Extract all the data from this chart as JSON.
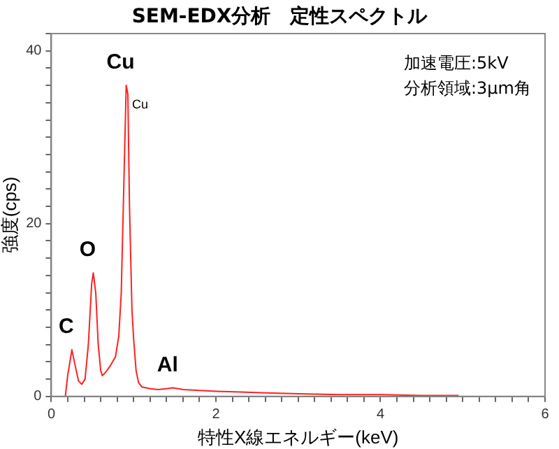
{
  "chart_data": {
    "type": "line",
    "title": "SEM-EDX分析　定性スペクトル",
    "xlabel": "特性X線エネルギー(keV)",
    "ylabel": "強度(cps)",
    "series": [
      {
        "color": "#ff2020",
        "x": [
          0.17,
          0.2,
          0.25,
          0.28,
          0.33,
          0.37,
          0.41,
          0.45,
          0.49,
          0.51,
          0.54,
          0.57,
          0.6,
          0.62,
          0.66,
          0.72,
          0.78,
          0.82,
          0.85,
          0.88,
          0.91,
          0.93,
          0.95,
          0.98,
          1.0,
          1.03,
          1.06,
          1.1,
          1.2,
          1.3,
          1.4,
          1.48,
          1.6,
          1.8,
          2.0,
          2.3,
          2.6,
          3.0,
          3.5,
          4.0,
          4.5,
          4.95
        ],
        "values": [
          0,
          2.5,
          5.4,
          4,
          1.8,
          1.4,
          2,
          6,
          13,
          14.3,
          12,
          6,
          3,
          2.4,
          2.8,
          3.6,
          4.6,
          7,
          12,
          24,
          36,
          35,
          22,
          10,
          6.7,
          3,
          1.6,
          1.1,
          0.9,
          0.8,
          0.9,
          1,
          0.8,
          0.7,
          0.6,
          0.5,
          0.4,
          0.3,
          0.2,
          0.2,
          0.1,
          0.1
        ]
      }
    ],
    "xlim": [
      0,
      6
    ],
    "ylim": [
      0,
      42
    ],
    "xticks": [
      0,
      {
        "value": 0.2,
        "label": null
      },
      {
        "value": 0.4,
        "label": null
      },
      {
        "value": 0.6,
        "label": null
      },
      {
        "value": 0.8,
        "label": null
      },
      {
        "value": 1,
        "label": null
      },
      {
        "value": 1.2,
        "label": null
      },
      {
        "value": 1.4,
        "label": null
      },
      {
        "value": 1.6,
        "label": null
      },
      {
        "value": 1.8,
        "label": null
      },
      2,
      {
        "value": 2.2,
        "label": null
      },
      {
        "value": 2.4,
        "label": null
      },
      {
        "value": 2.6,
        "label": null
      },
      {
        "value": 2.8,
        "label": null
      },
      {
        "value": 3,
        "label": null
      },
      {
        "value": 3.2,
        "label": null
      },
      {
        "value": 3.4,
        "label": null
      },
      {
        "value": 3.6,
        "label": null
      },
      {
        "value": 3.8,
        "label": null
      },
      4,
      {
        "value": 4.2,
        "label": null
      },
      {
        "value": 4.4,
        "label": null
      },
      {
        "value": 4.6,
        "label": null
      },
      {
        "value": 4.8,
        "label": null
      },
      {
        "value": 5,
        "label": null
      },
      {
        "value": 5.2,
        "label": null
      },
      {
        "value": 5.4,
        "label": null
      },
      {
        "value": 5.6,
        "label": null
      },
      {
        "value": 5.8,
        "label": null
      },
      6
    ],
    "yticks": [
      0,
      {
        "value": 2,
        "label": null
      },
      {
        "value": 4,
        "label": null
      },
      {
        "value": 6,
        "label": null
      },
      {
        "value": 8,
        "label": null
      },
      {
        "value": 10,
        "label": null
      },
      {
        "value": 12,
        "label": null
      },
      {
        "value": 14,
        "label": null
      },
      {
        "value": 16,
        "label": null
      },
      {
        "value": 18,
        "label": null
      },
      20,
      {
        "value": 22,
        "label": null
      },
      {
        "value": 24,
        "label": null
      },
      {
        "value": 26,
        "label": null
      },
      {
        "value": 28,
        "label": null
      },
      {
        "value": 30,
        "label": null
      },
      {
        "value": 32,
        "label": null
      },
      {
        "value": 34,
        "label": null
      },
      {
        "value": 36,
        "label": null
      },
      {
        "value": 38,
        "label": null
      },
      40,
      {
        "value": 42,
        "label": null
      }
    ],
    "grid": false,
    "legend": false,
    "marker": "none",
    "line_style": "solid",
    "annotations": [
      {
        "text": "Cu",
        "x": 0.91,
        "y": 36
      },
      {
        "text": "Cu",
        "x": 0.91,
        "y": 36
      },
      {
        "text": "O",
        "x": 0.51,
        "y": 14.3
      },
      {
        "text": "C",
        "x": 0.25,
        "y": 5.4
      },
      {
        "text": "Al",
        "x": 1.48,
        "y": 1
      },
      "加速電圧:5kV",
      "分析領域:3μm角"
    ]
  }
}
